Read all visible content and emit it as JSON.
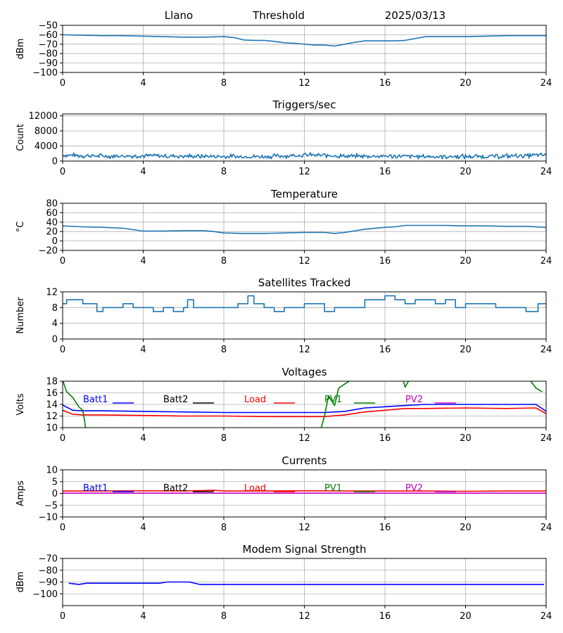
{
  "colors": {
    "default_series": "#1f77b4",
    "grid": "#b0b0b0",
    "batt1": "#0000ff",
    "batt2": "#000000",
    "load": "#ff0000",
    "pv1": "#008000",
    "pv2": "#bf00bf"
  },
  "header": {
    "station": "Llano",
    "plot": "Threshold",
    "date": "2025/03/13"
  },
  "chart_data": [
    {
      "id": "threshold",
      "type": "line",
      "title": "",
      "ylabel": "dBm",
      "xlim": [
        0,
        24
      ],
      "ylim": [
        -100,
        -50
      ],
      "xticks": [
        "0",
        "4",
        "8",
        "12",
        "16",
        "20",
        "24"
      ],
      "yticks": [
        "−50",
        "−60",
        "−70",
        "−80",
        "−90",
        "−100"
      ],
      "grid": true,
      "series": [
        {
          "color_key": "default_series",
          "x": [
            0,
            1,
            2,
            3,
            4,
            5,
            6,
            7,
            8,
            8.5,
            9,
            9.5,
            10,
            10.5,
            11,
            11.5,
            12,
            12.5,
            13,
            13.5,
            14,
            14.5,
            15,
            15.5,
            16,
            16.5,
            17,
            17.5,
            18,
            19,
            20,
            21,
            22,
            23,
            24
          ],
          "y": [
            -60,
            -60.5,
            -61,
            -61,
            -61.5,
            -62,
            -62.5,
            -62.5,
            -62,
            -63,
            -65.5,
            -66,
            -66,
            -67,
            -68.5,
            -69,
            -70,
            -71,
            -71,
            -72,
            -70,
            -68,
            -66.5,
            -66.5,
            -66.5,
            -66.5,
            -66,
            -64,
            -62,
            -62,
            -62,
            -61.5,
            -61,
            -61,
            -61
          ]
        }
      ]
    },
    {
      "id": "triggers",
      "type": "line",
      "title": "Triggers/sec",
      "ylabel": "Count",
      "xlim": [
        0,
        24
      ],
      "ylim": [
        0,
        12500
      ],
      "xticks": [
        "0",
        "4",
        "8",
        "12",
        "16",
        "20",
        "24"
      ],
      "yticks": [
        "0",
        "4000",
        "8000",
        "12000"
      ],
      "ytick_values": [
        0,
        4000,
        8000,
        12000
      ],
      "grid": true,
      "noise": {
        "base": 1400,
        "amp": 550,
        "step": 0.05
      },
      "series": [
        {
          "color_key": "default_series",
          "x": [
            0,
            2,
            4,
            6,
            8,
            10,
            12,
            13,
            14,
            16,
            18,
            20,
            22,
            24
          ],
          "y": [
            1600,
            1300,
            1400,
            1300,
            1200,
            1200,
            1600,
            1500,
            1300,
            1300,
            1200,
            1200,
            1300,
            1600
          ]
        }
      ]
    },
    {
      "id": "temperature",
      "type": "line",
      "title": "Temperature",
      "ylabel": "°C",
      "xlim": [
        0,
        24
      ],
      "ylim": [
        -20,
        80
      ],
      "xticks": [
        "0",
        "4",
        "8",
        "12",
        "16",
        "20",
        "24"
      ],
      "yticks": [
        "−20",
        "0",
        "20",
        "40",
        "60",
        "80"
      ],
      "ytick_values": [
        -20,
        0,
        20,
        40,
        60,
        80
      ],
      "grid": true,
      "series": [
        {
          "color_key": "default_series",
          "x": [
            0,
            1,
            2,
            3,
            3.5,
            4,
            5,
            6,
            7,
            7.5,
            8,
            9,
            10,
            11,
            12,
            13,
            13.5,
            14,
            15,
            16,
            16.5,
            17,
            18,
            19,
            20,
            21,
            22,
            23,
            24
          ],
          "y": [
            32,
            30,
            29,
            27,
            24,
            21,
            21,
            22,
            22,
            20,
            17,
            16,
            16,
            17,
            18,
            18,
            16,
            18,
            25,
            29,
            30,
            33,
            33,
            33,
            32,
            32,
            31,
            31,
            29
          ]
        }
      ]
    },
    {
      "id": "satellites",
      "type": "line",
      "title": "Satellites Tracked",
      "ylabel": "Number",
      "xlim": [
        0,
        24
      ],
      "ylim": [
        0,
        12
      ],
      "xticks": [
        "0",
        "4",
        "8",
        "12",
        "16",
        "20",
        "24"
      ],
      "yticks": [
        "0",
        "4",
        "8",
        "12"
      ],
      "ytick_values": [
        0,
        4,
        8,
        12
      ],
      "grid": true,
      "series": [
        {
          "color_key": "default_series",
          "step": true,
          "x": [
            0,
            0.2,
            1,
            1.7,
            2,
            2.5,
            3,
            3.5,
            4,
            4.5,
            5,
            5.5,
            6,
            6.2,
            6.5,
            7,
            8,
            8.7,
            9.2,
            9.5,
            10,
            10.5,
            11,
            11.5,
            12,
            13,
            13.5,
            14,
            15,
            15.5,
            16,
            16.5,
            17,
            17.5,
            18,
            18.5,
            19,
            19.5,
            20,
            20.5,
            21,
            21.5,
            22,
            22.5,
            23,
            23.6,
            24
          ],
          "y": [
            9,
            10,
            9,
            7,
            8,
            8,
            9,
            8,
            8,
            7,
            8,
            7,
            8,
            10,
            8,
            8,
            8,
            9,
            11,
            9,
            8,
            7,
            8,
            8,
            9,
            7,
            8,
            8,
            10,
            10,
            11,
            10,
            9,
            10,
            10,
            9,
            10,
            8,
            9,
            9,
            9,
            8,
            8,
            8,
            7,
            9,
            9
          ]
        }
      ]
    },
    {
      "id": "voltages",
      "type": "line",
      "title": "Voltages",
      "ylabel": "Volts",
      "xlim": [
        0,
        24
      ],
      "ylim": [
        10,
        18
      ],
      "xticks": [
        "0",
        "4",
        "8",
        "12",
        "16",
        "20",
        "24"
      ],
      "yticks": [
        "10",
        "12",
        "14",
        "16",
        "18"
      ],
      "ytick_values": [
        10,
        12,
        14,
        16,
        18
      ],
      "grid": true,
      "legend": [
        "Batt1",
        "Batt2",
        "Load",
        "PV1",
        "PV2"
      ],
      "series": [
        {
          "name": "Batt1",
          "color_key": "batt1",
          "x": [
            0,
            0.5,
            1,
            2,
            4,
            6,
            8,
            10,
            12,
            13,
            14,
            15,
            16,
            17,
            18,
            20,
            22,
            23.5,
            24
          ],
          "y": [
            13.9,
            13.0,
            12.9,
            12.9,
            12.8,
            12.7,
            12.6,
            12.6,
            12.6,
            12.6,
            12.8,
            13.4,
            13.6,
            13.8,
            14.0,
            14.0,
            14.0,
            14.0,
            12.8
          ]
        },
        {
          "name": "Load",
          "color_key": "load",
          "x": [
            0,
            0.5,
            1,
            2,
            4,
            6,
            8,
            10,
            12,
            13,
            14,
            15,
            16,
            17,
            18,
            20,
            22,
            23.5,
            24
          ],
          "y": [
            13.0,
            12.3,
            12.2,
            12.2,
            12.1,
            12.0,
            12.0,
            11.9,
            11.9,
            11.9,
            12.2,
            12.7,
            13.0,
            13.3,
            13.3,
            13.4,
            13.3,
            13.4,
            12.4
          ]
        },
        {
          "name": "PV1",
          "color_key": "pv1",
          "x": [
            0,
            0.2,
            0.5,
            0.8,
            1.0,
            1.1,
            1.15
          ],
          "y": [
            18.2,
            16.2,
            15.2,
            13.6,
            13.0,
            11.0,
            9.5
          ]
        },
        {
          "name": "PV1",
          "color_key": "pv1",
          "x": [
            12.8,
            13.0,
            13.2,
            13.5,
            13.7,
            14.0,
            14.3
          ],
          "y": [
            9.5,
            12.0,
            15.5,
            13.8,
            16.8,
            17.5,
            18.2
          ]
        },
        {
          "name": "PV1",
          "color_key": "pv1",
          "x": [
            16.9,
            17.0,
            17.2
          ],
          "y": [
            18.2,
            17.0,
            18.2
          ]
        },
        {
          "name": "PV1",
          "color_key": "pv1",
          "x": [
            23.2,
            23.5,
            23.8
          ],
          "y": [
            18.2,
            16.8,
            16.2
          ]
        }
      ]
    },
    {
      "id": "currents",
      "type": "line",
      "title": "Currents",
      "ylabel": "Amps",
      "xlim": [
        0,
        24
      ],
      "ylim": [
        -10,
        10
      ],
      "xticks": [
        "0",
        "4",
        "8",
        "12",
        "16",
        "20",
        "24"
      ],
      "yticks": [
        "−10",
        "−5",
        "0",
        "5",
        "10"
      ],
      "ytick_values": [
        -10,
        -5,
        0,
        5,
        10
      ],
      "grid": true,
      "legend": [
        "Batt1",
        "Batt2",
        "Load",
        "PV1",
        "PV2"
      ],
      "series": [
        {
          "name": "PV2",
          "color_key": "pv2",
          "x": [
            0,
            24
          ],
          "y": [
            0.1,
            0.1
          ]
        },
        {
          "name": "Load",
          "color_key": "load",
          "x": [
            0,
            2,
            4,
            6,
            7.5,
            8,
            10,
            12,
            14,
            16,
            18,
            20,
            22,
            24
          ],
          "y": [
            1.0,
            1.0,
            1.1,
            1.0,
            1.3,
            1.0,
            1.0,
            1.1,
            1.0,
            1.0,
            1.0,
            0.9,
            1.0,
            1.0
          ]
        }
      ]
    },
    {
      "id": "modem",
      "type": "line",
      "title": "Modem Signal Strength",
      "ylabel": "dBm",
      "xlim": [
        0,
        24
      ],
      "ylim": [
        -110,
        -70
      ],
      "xticks": [
        "0",
        "4",
        "8",
        "12",
        "16",
        "20",
        "24"
      ],
      "yticks": [
        "−100",
        "−90",
        "−80",
        "−70"
      ],
      "ytick_values": [
        -100,
        -90,
        -80,
        -70
      ],
      "grid": true,
      "series": [
        {
          "color_key": "batt1",
          "x": [
            0.3,
            0.8,
            1.2,
            4,
            4.8,
            5.2,
            6,
            6.3,
            6.8,
            10,
            14,
            18,
            22,
            23.9
          ],
          "y": [
            -91,
            -92,
            -91,
            -91,
            -91,
            -90,
            -90,
            -90,
            -92,
            -92,
            -92,
            -92,
            -92,
            -92
          ]
        }
      ]
    }
  ]
}
